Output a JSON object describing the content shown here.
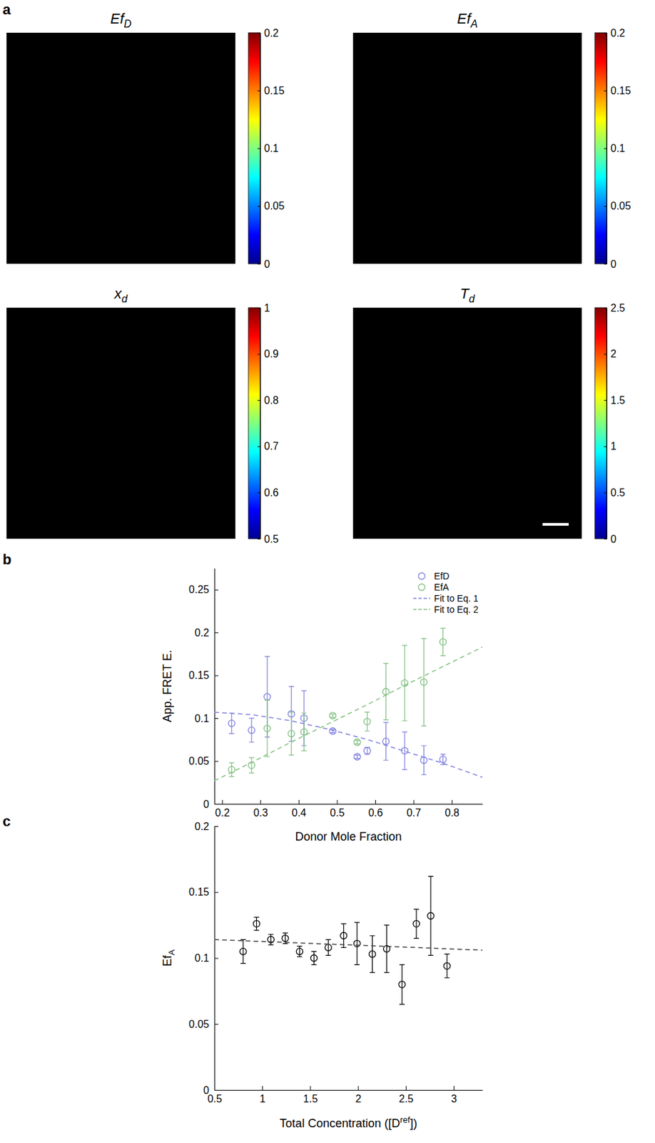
{
  "chart_data": [
    {
      "type": "image",
      "panel_label": "a",
      "title": "Ef",
      "subscript": "D",
      "colorbar_range": [
        0,
        0.2
      ],
      "colorbar_ticks": [
        0,
        0.05,
        0.1,
        0.15,
        0.2
      ]
    },
    {
      "type": "image",
      "title": "Ef",
      "subscript": "A",
      "colorbar_range": [
        0,
        0.2
      ],
      "colorbar_ticks": [
        0,
        0.05,
        0.1,
        0.15,
        0.2
      ]
    },
    {
      "type": "image",
      "title": "x",
      "subscript": "d",
      "colorbar_range": [
        0.5,
        1
      ],
      "colorbar_ticks": [
        0.5,
        0.6,
        0.7,
        0.8,
        0.9,
        1
      ]
    },
    {
      "type": "image",
      "title": "T",
      "subscript": "d",
      "colorbar_range": [
        0,
        2.5
      ],
      "colorbar_ticks": [
        0,
        0.5,
        1,
        1.5,
        2,
        2.5
      ]
    },
    {
      "type": "scatter",
      "panel_label": "b",
      "x_label": "Donor Mole Fraction",
      "y_label": "App. FRET E.",
      "xlim": [
        0.18,
        0.88
      ],
      "xticks": [
        0.2,
        0.3,
        0.4,
        0.5,
        0.6,
        0.7,
        0.8
      ],
      "ylim": [
        0,
        0.275
      ],
      "yticks": [
        0,
        0.05,
        0.1,
        0.15,
        0.2,
        0.25
      ],
      "legend": "upper right",
      "series": [
        {
          "name": "EfD",
          "type": "scatter",
          "marker": "circle",
          "color": "#7f7fe0",
          "x": [
            0.225,
            0.277,
            0.318,
            0.381,
            0.414,
            0.489,
            0.553,
            0.579,
            0.628,
            0.677,
            0.727,
            0.777
          ],
          "values": [
            0.094,
            0.086,
            0.125,
            0.105,
            0.1,
            0.085,
            0.055,
            0.062,
            0.073,
            0.062,
            0.051,
            0.052
          ],
          "errors": [
            0.012,
            0.014,
            0.047,
            0.032,
            0.032,
            0.002,
            0.002,
            0.004,
            0.022,
            0.022,
            0.017,
            0.006
          ]
        },
        {
          "name": "EfA",
          "type": "scatter",
          "marker": "circle",
          "color": "#7fbf7f",
          "x": [
            0.225,
            0.277,
            0.318,
            0.381,
            0.414,
            0.489,
            0.553,
            0.579,
            0.628,
            0.677,
            0.727,
            0.777
          ],
          "values": [
            0.04,
            0.045,
            0.088,
            0.082,
            0.084,
            0.103,
            0.072,
            0.096,
            0.131,
            0.141,
            0.142,
            0.189
          ],
          "errors": [
            0.008,
            0.009,
            0.033,
            0.025,
            0.022,
            0.002,
            0.002,
            0.011,
            0.033,
            0.044,
            0.051,
            0.016
          ]
        },
        {
          "name": "Fit to Eq. 1",
          "type": "line",
          "line_style": "dashed",
          "color": "#7f7fe0",
          "x": [
            0.18,
            0.28,
            0.38,
            0.48,
            0.58,
            0.68,
            0.78,
            0.88
          ],
          "values": [
            0.107,
            0.104,
            0.097,
            0.087,
            0.075,
            0.061,
            0.047,
            0.031
          ]
        },
        {
          "name": "Fit to Eq. 2",
          "type": "line",
          "line_style": "dashed",
          "color": "#7fbf7f",
          "x": [
            0.18,
            0.28,
            0.38,
            0.48,
            0.58,
            0.68,
            0.78,
            0.88
          ],
          "values": [
            0.027,
            0.049,
            0.072,
            0.094,
            0.116,
            0.139,
            0.161,
            0.183
          ]
        }
      ]
    },
    {
      "type": "scatter",
      "panel_label": "c",
      "x_label": "Total Concentration ([D",
      "x_label_superscript": "ref",
      "x_label_suffix": "])",
      "y_label": "Ef",
      "y_label_subscript": "A",
      "xlim": [
        0.5,
        3.3
      ],
      "xticks": [
        0.5,
        1,
        1.5,
        2,
        2.5,
        3
      ],
      "ylim": [
        0,
        0.2
      ],
      "yticks": [
        0,
        0.05,
        0.1,
        0.15,
        0.2
      ],
      "series": [
        {
          "type": "scatter",
          "marker": "circle",
          "color": "#000000",
          "x": [
            0.8,
            0.94,
            1.09,
            1.24,
            1.39,
            1.54,
            1.69,
            1.85,
            1.99,
            2.15,
            2.3,
            2.46,
            2.61,
            2.76,
            2.93
          ],
          "values": [
            0.105,
            0.126,
            0.114,
            0.115,
            0.105,
            0.1,
            0.108,
            0.117,
            0.111,
            0.103,
            0.107,
            0.08,
            0.126,
            0.132,
            0.094
          ],
          "errors": [
            0.009,
            0.005,
            0.004,
            0.004,
            0.004,
            0.005,
            0.006,
            0.009,
            0.016,
            0.014,
            0.018,
            0.015,
            0.011,
            0.03,
            0.009
          ]
        },
        {
          "type": "line",
          "line_style": "dashed",
          "color": "#404040",
          "x": [
            0.5,
            3.3
          ],
          "values": [
            0.114,
            0.106
          ]
        }
      ]
    }
  ]
}
